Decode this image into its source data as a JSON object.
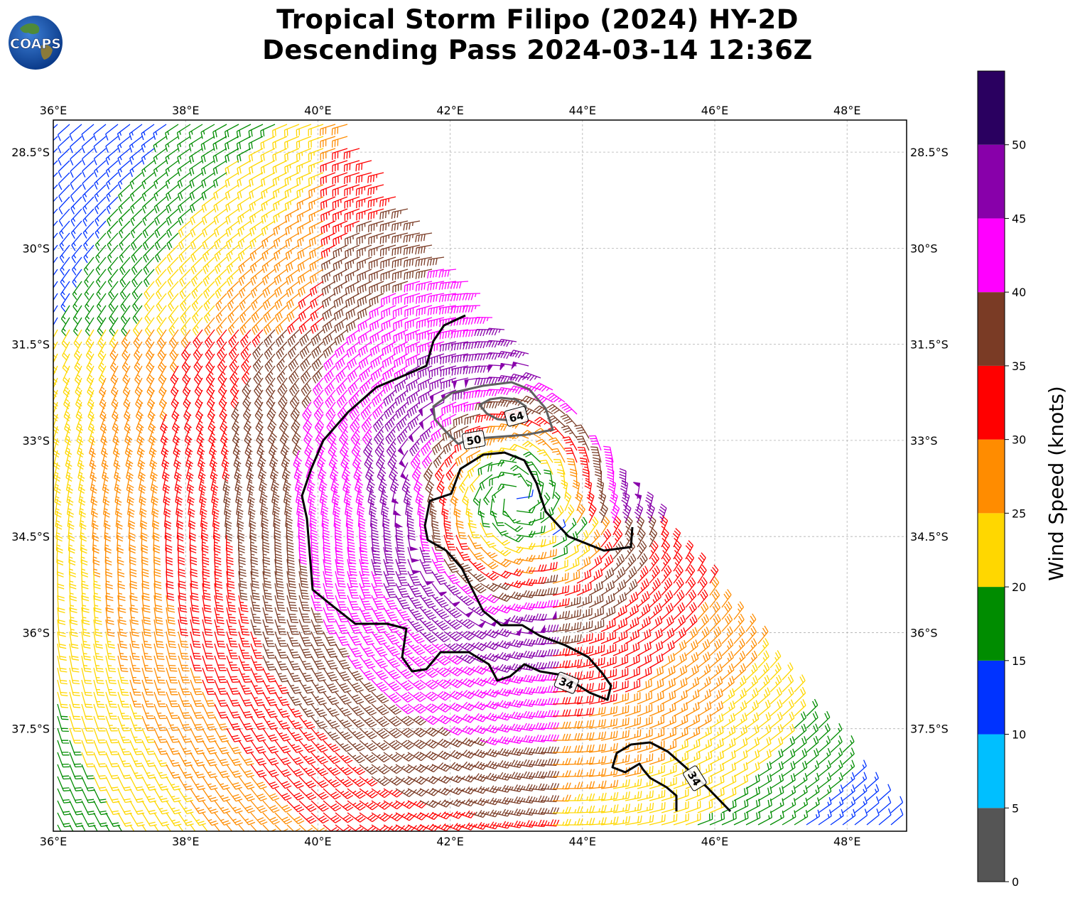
{
  "title": {
    "line1": "Tropical Storm Filipo (2024) HY-2D",
    "line2": "Descending Pass 2024-03-14 12:36Z"
  },
  "logo": {
    "text": "COAPS"
  },
  "map": {
    "lon_range": [
      36.0,
      48.9
    ],
    "lat_range": [
      -39.1,
      -28.0
    ],
    "lon_ticks": [
      "36°E",
      "38°E",
      "40°E",
      "42°E",
      "44°E",
      "46°E",
      "48°E"
    ],
    "lat_ticks": [
      "28.5°S",
      "30°S",
      "31.5°S",
      "33°S",
      "34.5°S",
      "36°S",
      "37.5°S"
    ],
    "gridlines": true,
    "storm_center": {
      "lon": 43.0,
      "lat": -33.9
    },
    "contour_labels": [
      "64",
      "50",
      "34",
      "34"
    ]
  },
  "colorbar": {
    "label": "Wind Speed (knots)",
    "ticks": [
      "0",
      "5",
      "10",
      "15",
      "20",
      "25",
      "30",
      "35",
      "40",
      "45",
      "50"
    ],
    "levels": [
      0,
      5,
      10,
      15,
      20,
      25,
      30,
      35,
      40,
      45,
      50,
      55
    ],
    "colors": [
      "#555555",
      "#00bfff",
      "#0033ff",
      "#008c00",
      "#ffd700",
      "#ff8c00",
      "#ff0000",
      "#7a3b25",
      "#ff00ff",
      "#8800aa",
      "#2a0060"
    ]
  }
}
